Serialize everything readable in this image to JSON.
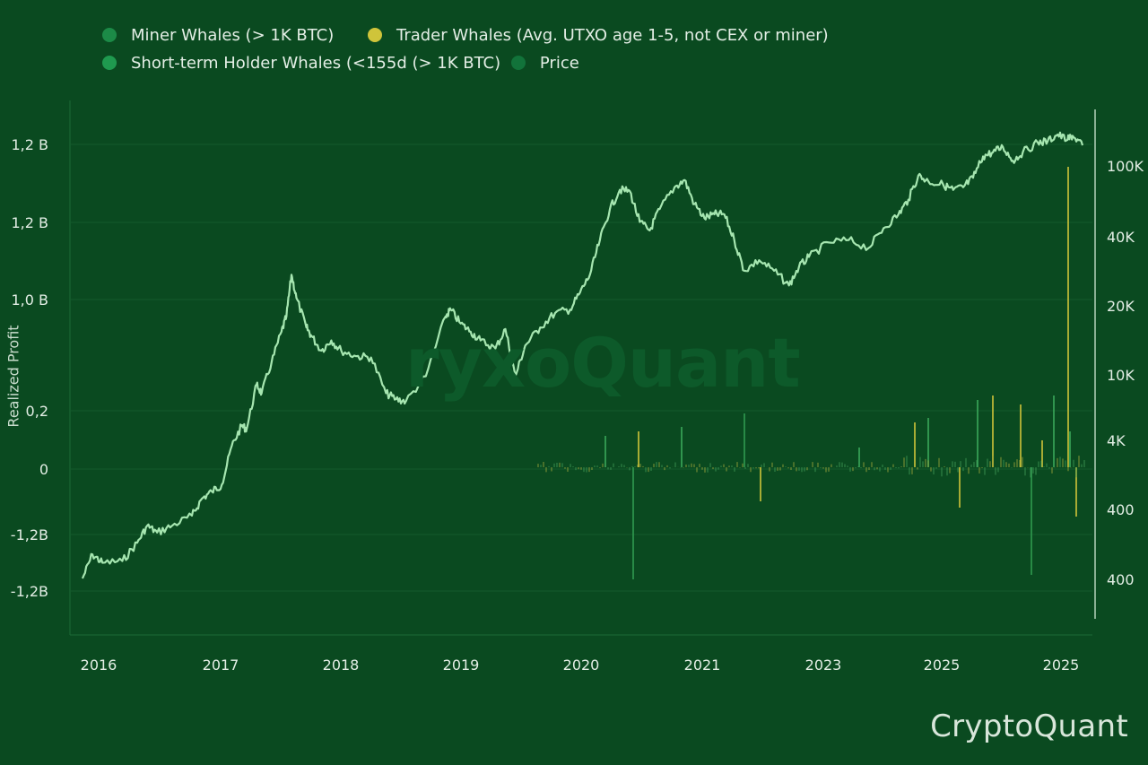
{
  "legend": [
    {
      "label": "Miner Whales (> 1K BTC)",
      "color": "#1c8a47"
    },
    {
      "label": "Trader Whales (Avg.  UTXO age 1-5, not CEX or miner)",
      "color": "#cfc43a"
    },
    {
      "label": "Short-term Holder Whales (<155d (> 1K BTC)",
      "color": "#1f9a4f"
    },
    {
      "label": "Price",
      "color": "#12733a"
    }
  ],
  "watermark": "ryxoQuant",
  "brand": "CryptoQuant",
  "left_axis_title": "Realized Profit",
  "chart_data": {
    "type": "line",
    "xlabel": "",
    "x_ticks": [
      "2016",
      "2017",
      "2018",
      "2019",
      "2020",
      "2021",
      "2023",
      "2025",
      "2025"
    ],
    "left_axis": {
      "ticks": [
        "1,2 B",
        "1,2 B",
        "1,0 B",
        "0,2",
        "0",
        "-1,2B",
        "-1,2B"
      ]
    },
    "right_axis": {
      "scale": "log",
      "ticks": [
        "100K",
        "40K",
        "20K",
        "10K",
        "4K",
        "400",
        "400"
      ]
    },
    "series": [
      {
        "name": "Price",
        "color": "#a6e6b0",
        "points": [
          [
            2015.8,
            350
          ],
          [
            2015.9,
            480
          ],
          [
            2016.0,
            430
          ],
          [
            2016.2,
            440
          ],
          [
            2016.35,
            560
          ],
          [
            2016.45,
            700
          ],
          [
            2016.55,
            640
          ],
          [
            2016.7,
            700
          ],
          [
            2016.9,
            800
          ],
          [
            2017.0,
            1000
          ],
          [
            2017.1,
            1100
          ],
          [
            2017.2,
            1200
          ],
          [
            2017.3,
            2000
          ],
          [
            2017.4,
            2600
          ],
          [
            2017.45,
            2500
          ],
          [
            2017.55,
            4500
          ],
          [
            2017.6,
            4000
          ],
          [
            2017.7,
            6000
          ],
          [
            2017.8,
            9000
          ],
          [
            2017.85,
            11000
          ],
          [
            2017.9,
            19000
          ],
          [
            2017.95,
            14000
          ],
          [
            2018.05,
            9500
          ],
          [
            2018.1,
            8500
          ],
          [
            2018.2,
            7000
          ],
          [
            2018.3,
            8000
          ],
          [
            2018.4,
            7000
          ],
          [
            2018.55,
            6500
          ],
          [
            2018.7,
            6400
          ],
          [
            2018.85,
            4000
          ],
          [
            2018.95,
            3700
          ],
          [
            2019.05,
            3600
          ],
          [
            2019.25,
            5000
          ],
          [
            2019.45,
            11000
          ],
          [
            2019.5,
            12000
          ],
          [
            2019.6,
            10000
          ],
          [
            2019.7,
            9000
          ],
          [
            2019.8,
            8000
          ],
          [
            2019.95,
            7200
          ],
          [
            2020.05,
            9300
          ],
          [
            2020.15,
            5000
          ],
          [
            2020.25,
            7500
          ],
          [
            2020.4,
            9500
          ],
          [
            2020.55,
            11500
          ],
          [
            2020.7,
            12000
          ],
          [
            2020.8,
            15000
          ],
          [
            2020.9,
            19000
          ],
          [
            2021.0,
            30000
          ],
          [
            2021.1,
            45000
          ],
          [
            2021.2,
            58000
          ],
          [
            2021.3,
            57000
          ],
          [
            2021.4,
            38000
          ],
          [
            2021.5,
            34000
          ],
          [
            2021.6,
            45000
          ],
          [
            2021.75,
            60000
          ],
          [
            2021.85,
            66000
          ],
          [
            2021.95,
            48000
          ],
          [
            2022.05,
            40000
          ],
          [
            2022.15,
            42000
          ],
          [
            2022.25,
            42000
          ],
          [
            2022.35,
            30000
          ],
          [
            2022.45,
            20000
          ],
          [
            2022.6,
            23000
          ],
          [
            2022.75,
            20000
          ],
          [
            2022.9,
            16500
          ],
          [
            2023.0,
            21000
          ],
          [
            2023.1,
            24000
          ],
          [
            2023.3,
            29000
          ],
          [
            2023.5,
            30000
          ],
          [
            2023.7,
            27000
          ],
          [
            2023.85,
            35000
          ],
          [
            2024.0,
            42000
          ],
          [
            2024.1,
            51000
          ],
          [
            2024.2,
            70000
          ],
          [
            2024.3,
            65000
          ],
          [
            2024.45,
            62000
          ],
          [
            2024.55,
            58000
          ],
          [
            2024.65,
            60000
          ],
          [
            2024.75,
            68000
          ],
          [
            2024.85,
            90000
          ],
          [
            2024.95,
            95000
          ],
          [
            2025.05,
            102000
          ],
          [
            2025.15,
            85000
          ],
          [
            2025.25,
            95000
          ],
          [
            2025.4,
            108000
          ],
          [
            2025.5,
            110000
          ],
          [
            2025.6,
            120000
          ],
          [
            2025.7,
            112000
          ],
          [
            2025.75,
            118000
          ],
          [
            2025.85,
            104000
          ]
        ]
      }
    ]
  }
}
